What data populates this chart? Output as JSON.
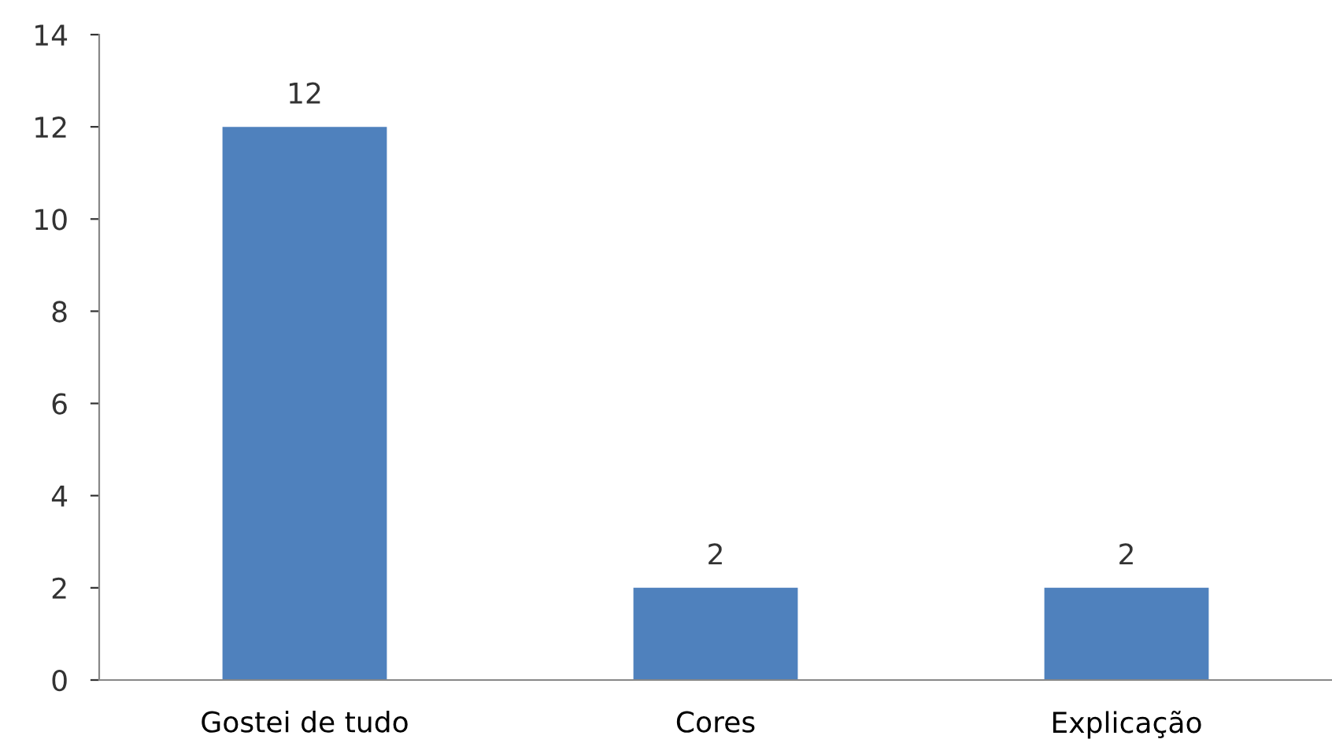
{
  "chart_data": {
    "type": "bar",
    "categories": [
      "Gostei de tudo",
      "Cores",
      "Explicação"
    ],
    "values": [
      12,
      2,
      2
    ],
    "color": "#4f81bd",
    "ylim": [
      0,
      14
    ],
    "yticks": [
      0,
      2,
      4,
      6,
      8,
      10,
      12,
      14
    ],
    "data_labels": true
  }
}
